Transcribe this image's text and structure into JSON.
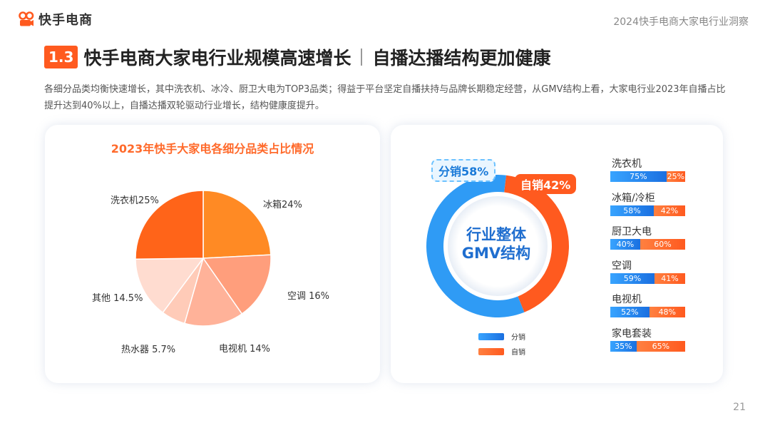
{
  "header": {
    "logo_text": "快手电商",
    "report_title": "2024快手电商大家电行业洞察"
  },
  "heading": {
    "badge": "1.3",
    "main": "快手电商大家电行业规模高速增长",
    "sub": "自播达播结构更加健康"
  },
  "description": "各细分品类均衡快速增长，其中洗衣机、冰冷、厨卫大电为TOP3品类；得益于平台坚定自播扶持与品牌长期稳定经营，从GMV结构上看，大家电行业2023年自播占比提升达到40%以上，自播达播双轮驱动行业增长，结构健康度提升。",
  "left_panel": {
    "title": "2023年快手大家电各细分品类占比情况"
  },
  "right_panel": {
    "center_label_line1": "行业整体",
    "center_label_line2": "GMV结构",
    "callout_distribution": "分销58%",
    "callout_self": "自销42%",
    "legend": [
      "分销",
      "自销"
    ]
  },
  "page_number": "21",
  "chart_data": [
    {
      "type": "pie",
      "title": "2023年快手大家电各细分品类占比情况",
      "categories": [
        "冰箱",
        "空调",
        "电视机",
        "热水器",
        "其他",
        "洗衣机"
      ],
      "values": [
        24,
        16,
        14,
        5.7,
        14.5,
        25
      ],
      "labels": [
        "冰箱24%",
        "空调 16%",
        "电视机 14%",
        "热水器 5.7%",
        "其他 14.5%",
        "洗衣机25%"
      ],
      "colors": [
        "#ff8a24",
        "#ff9e7c",
        "#ffb299",
        "#ffcbb8",
        "#ffdcd0",
        "#ff6419"
      ]
    },
    {
      "type": "pie",
      "subtype": "donut",
      "title": "行业整体GMV结构",
      "categories": [
        "分销",
        "自销"
      ],
      "values": [
        58,
        42
      ],
      "colors": [
        "#2f9bf5",
        "#ff5a1f"
      ]
    },
    {
      "type": "bar",
      "orientation": "horizontal",
      "stacked": "100%",
      "categories": [
        "洗衣机",
        "冰箱/冷柜",
        "厨卫大电",
        "空调",
        "电视机",
        "家电套装"
      ],
      "series": [
        {
          "name": "分销",
          "values": [
            75,
            58,
            40,
            59,
            52,
            35
          ]
        },
        {
          "name": "自销",
          "values": [
            25,
            42,
            60,
            41,
            48,
            65
          ]
        }
      ],
      "value_labels": [
        [
          "75%",
          "25%"
        ],
        [
          "58%",
          "42%"
        ],
        [
          "40%",
          "60%"
        ],
        [
          "59%",
          "41%"
        ],
        [
          "52%",
          "48%"
        ],
        [
          "35%",
          "65%"
        ]
      ]
    }
  ]
}
